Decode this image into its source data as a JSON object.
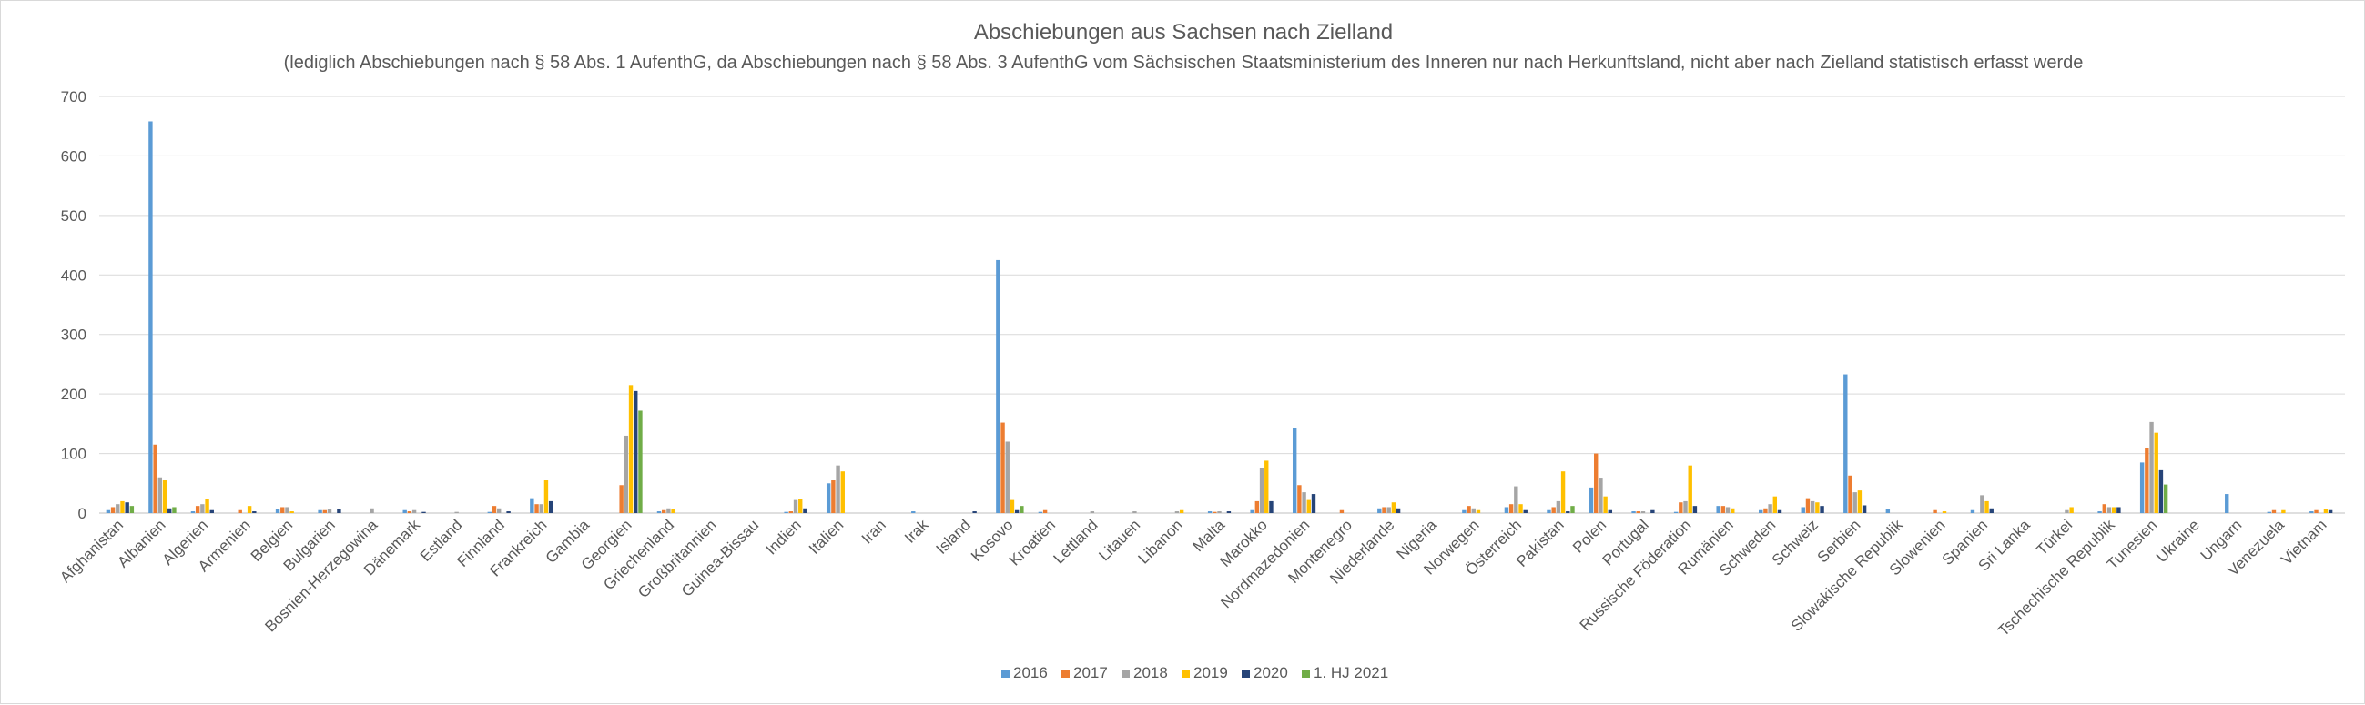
{
  "chart_data": {
    "type": "bar",
    "title": "Abschiebungen aus Sachsen nach Zielland",
    "subtitle": "(lediglich Abschiebungen nach § 58 Abs. 1 AufenthG, da Abschiebungen nach § 58 Abs. 3 AufenthG vom Sächsischen Staatsministerium des Inneren nur nach Herkunftsland, nicht aber nach Zielland statistisch erfasst werde",
    "xlabel": "",
    "ylabel": "",
    "ylim": [
      0,
      700
    ],
    "yticks": [
      0,
      100,
      200,
      300,
      400,
      500,
      600,
      700
    ],
    "grid": true,
    "legend_position": "bottom",
    "categories": [
      "Afghanistan",
      "Albanien",
      "Algerien",
      "Armenien",
      "Belgien",
      "Bulgarien",
      "Bosnien-Herzegowina",
      "Dänemark",
      "Estland",
      "Finnland",
      "Frankreich",
      "Gambia",
      "Georgien",
      "Griechenland",
      "Großbritannien",
      "Guinea-Bissau",
      "Indien",
      "Italien",
      "Iran",
      "Irak",
      "Island",
      "Kosovo",
      "Kroatien",
      "Lettland",
      "Litauen",
      "Libanon",
      "Malta",
      "Marokko",
      "Nordmazedonien",
      "Montenegro",
      "Niederlande",
      "Nigeria",
      "Norwegen",
      "Österreich",
      "Pakistan",
      "Polen",
      "Portugal",
      "Russische Föderation",
      "Rumänien",
      "Schweden",
      "Schweiz",
      "Serbien",
      "Slowakische Republik",
      "Slowenien",
      "Spanien",
      "Sri Lanka",
      "Türkei",
      "Tschechische Republik",
      "Tunesien",
      "Ukraine",
      "Ungarn",
      "Venezuela",
      "Vietnam"
    ],
    "series": [
      {
        "name": "2016",
        "color": "#5b9bd5",
        "values": [
          5,
          658,
          3,
          0,
          7,
          5,
          0,
          5,
          0,
          2,
          25,
          0,
          0,
          3,
          0,
          0,
          2,
          50,
          0,
          3,
          0,
          425,
          2,
          0,
          0,
          0,
          3,
          5,
          143,
          0,
          8,
          0,
          5,
          10,
          5,
          43,
          3,
          2,
          12,
          5,
          10,
          233,
          7,
          0,
          5,
          0,
          0,
          3,
          85,
          0,
          32,
          2,
          3
        ]
      },
      {
        "name": "2017",
        "color": "#ed7d31",
        "values": [
          10,
          115,
          12,
          5,
          10,
          5,
          0,
          3,
          0,
          12,
          15,
          0,
          47,
          5,
          0,
          0,
          3,
          55,
          0,
          0,
          0,
          152,
          5,
          0,
          0,
          0,
          2,
          20,
          47,
          5,
          10,
          0,
          12,
          15,
          10,
          100,
          3,
          18,
          12,
          8,
          25,
          63,
          0,
          5,
          0,
          0,
          0,
          15,
          110,
          0,
          0,
          5,
          5
        ]
      },
      {
        "name": "2018",
        "color": "#a5a5a5",
        "values": [
          15,
          60,
          15,
          0,
          10,
          7,
          8,
          5,
          2,
          8,
          15,
          0,
          130,
          8,
          0,
          0,
          22,
          80,
          0,
          0,
          0,
          120,
          0,
          3,
          3,
          3,
          3,
          75,
          35,
          0,
          10,
          0,
          8,
          45,
          20,
          58,
          3,
          20,
          10,
          15,
          20,
          35,
          0,
          0,
          30,
          0,
          5,
          10,
          153,
          0,
          0,
          0,
          0
        ]
      },
      {
        "name": "2019",
        "color": "#ffc000",
        "values": [
          20,
          55,
          23,
          12,
          3,
          0,
          0,
          0,
          0,
          0,
          55,
          0,
          215,
          7,
          0,
          0,
          23,
          70,
          0,
          0,
          0,
          22,
          0,
          0,
          0,
          5,
          0,
          88,
          22,
          0,
          18,
          0,
          5,
          15,
          70,
          28,
          0,
          80,
          8,
          28,
          18,
          38,
          0,
          3,
          20,
          0,
          10,
          10,
          135,
          0,
          0,
          5,
          7
        ]
      },
      {
        "name": "2020",
        "color": "#264478",
        "values": [
          18,
          8,
          5,
          3,
          0,
          7,
          0,
          2,
          0,
          3,
          20,
          0,
          205,
          0,
          0,
          0,
          8,
          0,
          0,
          0,
          3,
          5,
          0,
          0,
          0,
          0,
          3,
          20,
          32,
          0,
          8,
          0,
          0,
          5,
          3,
          5,
          5,
          12,
          0,
          5,
          12,
          13,
          0,
          0,
          8,
          0,
          0,
          10,
          72,
          0,
          0,
          0,
          5
        ]
      },
      {
        "name": "1. HJ 2021",
        "color": "#70ad47",
        "values": [
          12,
          10,
          0,
          0,
          0,
          0,
          0,
          0,
          0,
          0,
          0,
          0,
          172,
          0,
          0,
          0,
          0,
          0,
          0,
          0,
          0,
          12,
          0,
          0,
          0,
          0,
          0,
          0,
          0,
          0,
          0,
          0,
          0,
          0,
          12,
          0,
          0,
          0,
          0,
          0,
          0,
          0,
          0,
          0,
          0,
          0,
          0,
          0,
          48,
          0,
          0,
          0,
          0
        ]
      }
    ]
  }
}
